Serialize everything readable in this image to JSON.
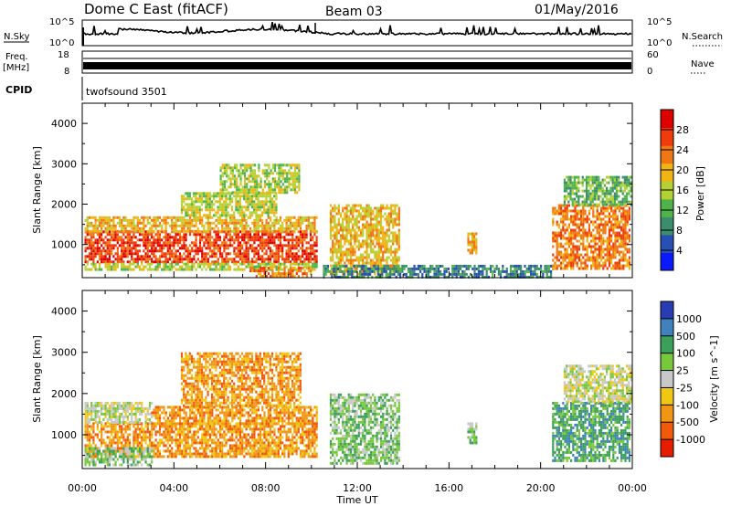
{
  "header": {
    "title": "Dome C East (fitACF)",
    "beam": "Beam 03",
    "date": "01/May/2016"
  },
  "summary": {
    "nsky_label": "N.Sky",
    "nsearch_label": "N.Search",
    "freq_label": "Freq.",
    "freq_unit": "[MHz]",
    "nave_label": "Nave",
    "cpid_label": "CPID",
    "cpid_value": "twofsound 3501",
    "noise_ticks": [
      "10^5",
      "10^0"
    ],
    "freq_ticks": [
      "18",
      "8"
    ],
    "nave_ticks": [
      "60",
      "0"
    ]
  },
  "axes": {
    "xlabel": "Time UT",
    "xticks": [
      "00:00",
      "04:00",
      "08:00",
      "12:00",
      "16:00",
      "20:00",
      "00:00"
    ],
    "ylabel": "Slant Range [km]",
    "yticks": [
      "4000",
      "3000",
      "2000",
      "1000"
    ]
  },
  "chart_data": [
    {
      "type": "heatmap",
      "name": "power",
      "xlim": [
        0,
        24
      ],
      "ylim": [
        180,
        4500
      ],
      "colorbar_label": "Power [dB]",
      "colorbar_ticks": [
        "28",
        "24",
        "20",
        "16",
        "12",
        "8",
        "4"
      ],
      "colorbar_values": [
        28,
        24,
        20,
        16,
        12,
        8,
        4
      ],
      "colors": [
        "#0a1aff",
        "#2850b4",
        "#3c8c6e",
        "#4fb34a",
        "#b4d234",
        "#f0b414",
        "#f07814",
        "#f03c0a",
        "#dc0000"
      ],
      "vmin": 0,
      "vmax": 32,
      "regions": [
        {
          "t": [
            0.1,
            10.2
          ],
          "r": [
            550,
            1350
          ],
          "v": 28
        },
        {
          "t": [
            0.1,
            10.2
          ],
          "r": [
            1350,
            1700
          ],
          "v": 20
        },
        {
          "t": [
            0.1,
            10.2
          ],
          "r": [
            350,
            550
          ],
          "v": 14
        },
        {
          "t": [
            7.3,
            10.0
          ],
          "r": [
            200,
            450
          ],
          "v": 24
        },
        {
          "t": [
            4.3,
            8.5
          ],
          "r": [
            1700,
            2300
          ],
          "v": 16
        },
        {
          "t": [
            6.0,
            9.5
          ],
          "r": [
            2300,
            3000
          ],
          "v": 14
        },
        {
          "t": [
            10.8,
            13.8
          ],
          "r": [
            250,
            2000
          ],
          "v": 20
        },
        {
          "t": [
            16.8,
            17.2
          ],
          "r": [
            800,
            1300
          ],
          "v": 20
        },
        {
          "t": [
            10.5,
            20.5
          ],
          "r": [
            200,
            500
          ],
          "v": 8
        },
        {
          "t": [
            20.5,
            23.9
          ],
          "r": [
            400,
            2000
          ],
          "v": 24
        },
        {
          "t": [
            21.0,
            23.9
          ],
          "r": [
            2000,
            2700
          ],
          "v": 12
        }
      ]
    },
    {
      "type": "heatmap",
      "name": "velocity",
      "xlim": [
        0,
        24
      ],
      "ylim": [
        180,
        4500
      ],
      "colorbar_label": "Velocity [m s^-1]",
      "colorbar_ticks": [
        "1000",
        "500",
        "100",
        "25",
        "-25",
        "-100",
        "-500",
        "-1000"
      ],
      "colors": [
        "#2a3cb4",
        "#3f82be",
        "#3ca05a",
        "#78c83c",
        "#c8c8c8",
        "#f0c814",
        "#f09614",
        "#f05a0a",
        "#e61e00"
      ],
      "regions": [
        {
          "t": [
            0.1,
            10.2
          ],
          "r": [
            500,
            1300
          ],
          "v": "-100"
        },
        {
          "t": [
            0.1,
            3.0
          ],
          "r": [
            1300,
            1800
          ],
          "v": "25"
        },
        {
          "t": [
            0.1,
            3.0
          ],
          "r": [
            300,
            700
          ],
          "v": "100"
        },
        {
          "t": [
            3.0,
            10.2
          ],
          "r": [
            1300,
            1700
          ],
          "v": "-100"
        },
        {
          "t": [
            4.3,
            9.5
          ],
          "r": [
            1700,
            3000
          ],
          "v": "-100"
        },
        {
          "t": [
            10.8,
            13.8
          ],
          "r": [
            300,
            2000
          ],
          "v": "100"
        },
        {
          "t": [
            16.8,
            17.2
          ],
          "r": [
            800,
            1300
          ],
          "v": "100"
        },
        {
          "t": [
            20.5,
            23.9
          ],
          "r": [
            400,
            1800
          ],
          "v": "500"
        },
        {
          "t": [
            21.0,
            23.9
          ],
          "r": [
            1800,
            2700
          ],
          "v": "25"
        }
      ]
    }
  ]
}
